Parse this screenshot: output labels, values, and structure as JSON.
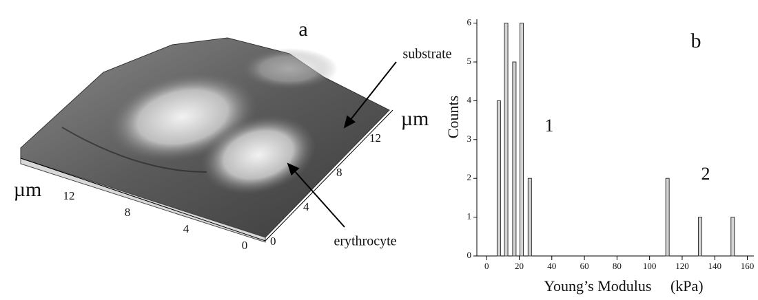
{
  "image_panel": {
    "label": "a",
    "annotations": [
      "substrate",
      "erythrocyte"
    ],
    "unit_left": "µm",
    "unit_right": "µm",
    "left_ticks": [
      "12",
      "8",
      "4",
      "0"
    ],
    "right_ticks": [
      "0",
      "4",
      "8",
      "12"
    ]
  },
  "chart_data": {
    "type": "bar",
    "panel_label": "b",
    "xlabel": "Young’s Modulus     (kPa)",
    "ylabel": "Counts",
    "annotations": [
      "1",
      "2"
    ],
    "x": [
      7.5,
      12,
      17,
      21.5,
      26.5,
      111,
      131,
      151
    ],
    "values": [
      4,
      6,
      5,
      6,
      2,
      2,
      1,
      1
    ],
    "color": "#d4d4d4",
    "xlim": [
      -6,
      164
    ],
    "ylim": [
      0,
      6.1
    ],
    "xticks": [
      0,
      20,
      40,
      60,
      80,
      100,
      120,
      140,
      160
    ],
    "yticks": [
      0,
      1,
      2,
      3,
      4,
      5,
      6
    ]
  }
}
